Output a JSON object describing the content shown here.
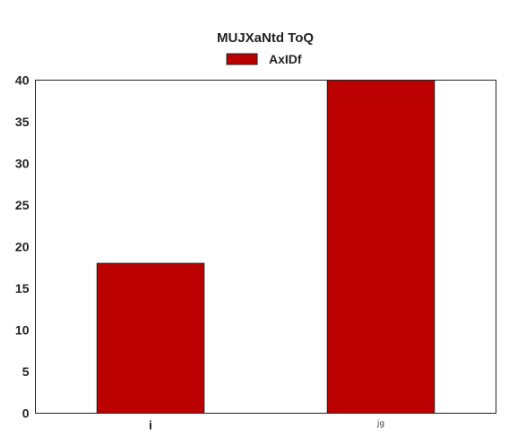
{
  "chart_data": {
    "type": "bar",
    "title": "MUJXaNtd ToQ",
    "xlabel": "",
    "ylabel": "",
    "categories": [
      "i",
      "jg"
    ],
    "series": [
      {
        "name": "AxIDf",
        "values": [
          18,
          40
        ],
        "color": "#bb0000"
      }
    ],
    "ylim": [
      0,
      40
    ],
    "yticks": [
      "0",
      "5",
      "10",
      "15",
      "20",
      "25",
      "30",
      "35",
      "40"
    ],
    "grid": false,
    "legend_position": "top-center"
  }
}
